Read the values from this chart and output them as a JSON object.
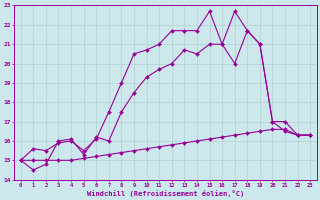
{
  "xlabel": "Windchill (Refroidissement éolien,°C)",
  "ylabel": "",
  "bg_color": "#cce8ec",
  "line_color": "#990099",
  "grid_color": "#aacccc",
  "xlim": [
    -0.5,
    23.5
  ],
  "ylim": [
    14,
    23
  ],
  "yticks": [
    14,
    15,
    16,
    17,
    18,
    19,
    20,
    21,
    22,
    23
  ],
  "xticks": [
    0,
    1,
    2,
    3,
    4,
    5,
    6,
    7,
    8,
    9,
    10,
    11,
    12,
    13,
    14,
    15,
    16,
    17,
    18,
    19,
    20,
    21,
    22,
    23
  ],
  "series": [
    {
      "x": [
        0,
        1,
        2,
        3,
        4,
        5,
        6,
        7,
        8,
        9,
        10,
        11,
        12,
        13,
        14,
        15,
        16,
        17,
        18,
        19,
        20,
        21,
        22,
        23
      ],
      "y": [
        15.0,
        15.6,
        15.5,
        15.9,
        16.0,
        15.5,
        16.1,
        17.5,
        19.0,
        20.5,
        20.7,
        21.0,
        21.7,
        21.7,
        21.7,
        22.7,
        21.0,
        22.7,
        21.7,
        21.0,
        17.0,
        16.5,
        16.3,
        16.3
      ]
    },
    {
      "x": [
        0,
        1,
        2,
        3,
        4,
        5,
        6,
        7,
        8,
        9,
        10,
        11,
        12,
        13,
        14,
        15,
        16,
        17,
        18,
        19,
        20,
        21,
        22,
        23
      ],
      "y": [
        15.0,
        14.5,
        14.8,
        16.0,
        16.1,
        15.3,
        16.2,
        16.0,
        17.5,
        18.5,
        19.3,
        19.7,
        20.0,
        20.7,
        20.5,
        21.0,
        21.0,
        20.0,
        21.7,
        21.0,
        17.0,
        17.0,
        16.3,
        16.3
      ]
    },
    {
      "x": [
        0,
        1,
        2,
        3,
        4,
        5,
        6,
        7,
        8,
        9,
        10,
        11,
        12,
        13,
        14,
        15,
        16,
        17,
        18,
        19,
        20,
        21,
        22,
        23
      ],
      "y": [
        15.0,
        15.0,
        15.0,
        15.0,
        15.0,
        15.1,
        15.2,
        15.3,
        15.4,
        15.5,
        15.6,
        15.7,
        15.8,
        15.9,
        16.0,
        16.1,
        16.2,
        16.3,
        16.4,
        16.5,
        16.6,
        16.6,
        16.3,
        16.3
      ]
    }
  ],
  "marker": "D",
  "marker_size": 2.0,
  "linewidth": 0.8
}
